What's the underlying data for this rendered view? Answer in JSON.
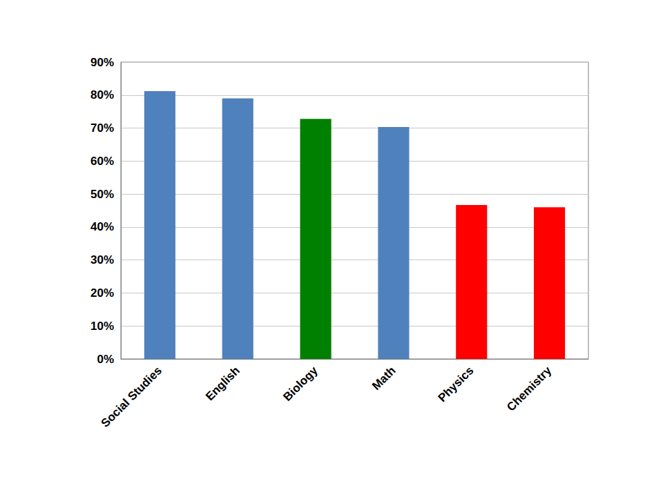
{
  "chart_data": {
    "type": "bar",
    "categories": [
      "Social Studies",
      "English",
      "Biology",
      "Math",
      "Physics",
      "Chemistry"
    ],
    "values": [
      81.2,
      79.0,
      72.8,
      70.3,
      46.7,
      46.0
    ],
    "colors": [
      "#4f81bd",
      "#4f81bd",
      "#008000",
      "#4f81bd",
      "#ff0000",
      "#ff0000"
    ],
    "ylim": [
      0,
      90
    ],
    "yticks": [
      {
        "value": 0,
        "label": "0%"
      },
      {
        "value": 10,
        "label": "10%"
      },
      {
        "value": 20,
        "label": "20%"
      },
      {
        "value": 30,
        "label": "30%"
      },
      {
        "value": 40,
        "label": "40%"
      },
      {
        "value": 50,
        "label": "50%"
      },
      {
        "value": 60,
        "label": "60%"
      },
      {
        "value": 70,
        "label": "70%"
      },
      {
        "value": 80,
        "label": "80%"
      },
      {
        "value": 90,
        "label": "90%"
      }
    ],
    "grid": true
  }
}
